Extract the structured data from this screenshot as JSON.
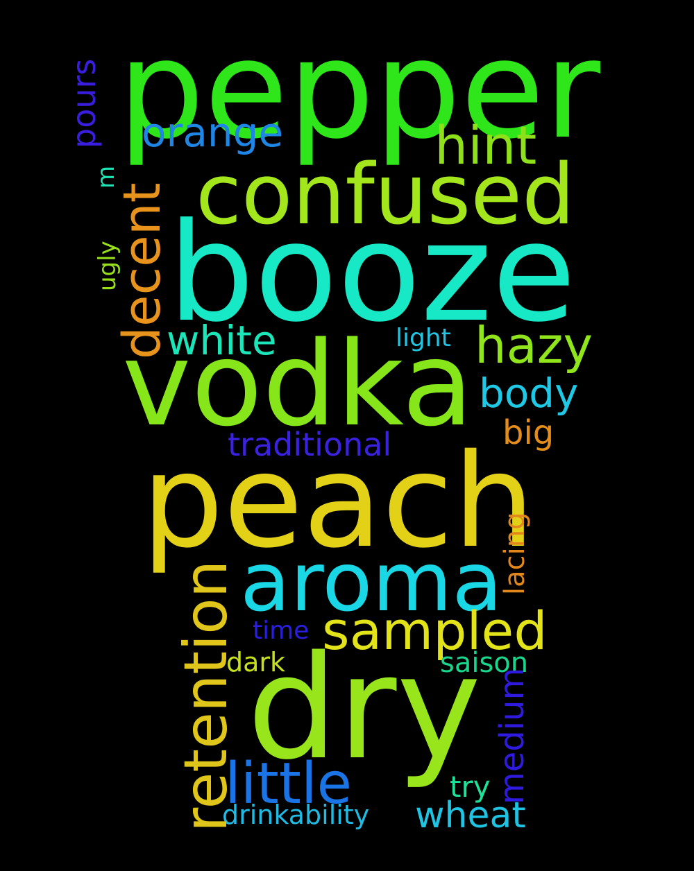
{
  "words": {
    "pepper": {
      "text": "pepper",
      "color": "#2ee619"
    },
    "booze": {
      "text": "booze",
      "color": "#17e8c5"
    },
    "vodka": {
      "text": "vodka",
      "color": "#86e619"
    },
    "peach": {
      "text": "peach",
      "color": "#e3d117"
    },
    "dry": {
      "text": "dry",
      "color": "#97e51a"
    },
    "confused": {
      "text": "confused",
      "color": "#a3e61b"
    },
    "aroma": {
      "text": "aroma",
      "color": "#1ad7e6"
    },
    "hint": {
      "text": "hint",
      "color": "#8de01a"
    },
    "orange": {
      "text": "orange",
      "color": "#1f86e6"
    },
    "decent": {
      "text": "decent",
      "color": "#e8931b"
    },
    "white": {
      "text": "white",
      "color": "#1ce6b9"
    },
    "hazy": {
      "text": "hazy",
      "color": "#90e51b"
    },
    "body": {
      "text": "body",
      "color": "#1fc9e6"
    },
    "light": {
      "text": "light",
      "color": "#21c5e3"
    },
    "traditional": {
      "text": "traditional",
      "color": "#3a22e0"
    },
    "big": {
      "text": "big",
      "color": "#e38d1b"
    },
    "retention": {
      "text": "retention",
      "color": "#e0c61a"
    },
    "sampled": {
      "text": "sampled",
      "color": "#e3e31a"
    },
    "little": {
      "text": "little",
      "color": "#1b74e6"
    },
    "time": {
      "text": "time",
      "color": "#2a1ee0"
    },
    "dark": {
      "text": "dark",
      "color": "#c6e01b"
    },
    "saison": {
      "text": "saison",
      "color": "#1ad68c"
    },
    "medium": {
      "text": "medium",
      "color": "#2f1be0"
    },
    "lacing": {
      "text": "lacing",
      "color": "#e2871c"
    },
    "try": {
      "text": "try",
      "color": "#1ce39a"
    },
    "wheat": {
      "text": "wheat",
      "color": "#1fc4e3"
    },
    "drinkability": {
      "text": "drinkability",
      "color": "#20bbe3"
    },
    "pours": {
      "text": "pours",
      "color": "#3a1ee0"
    },
    "ugly": {
      "text": "ugly",
      "color": "#98e01c"
    },
    "m": {
      "text": "m",
      "color": "#1ce3b4"
    }
  }
}
